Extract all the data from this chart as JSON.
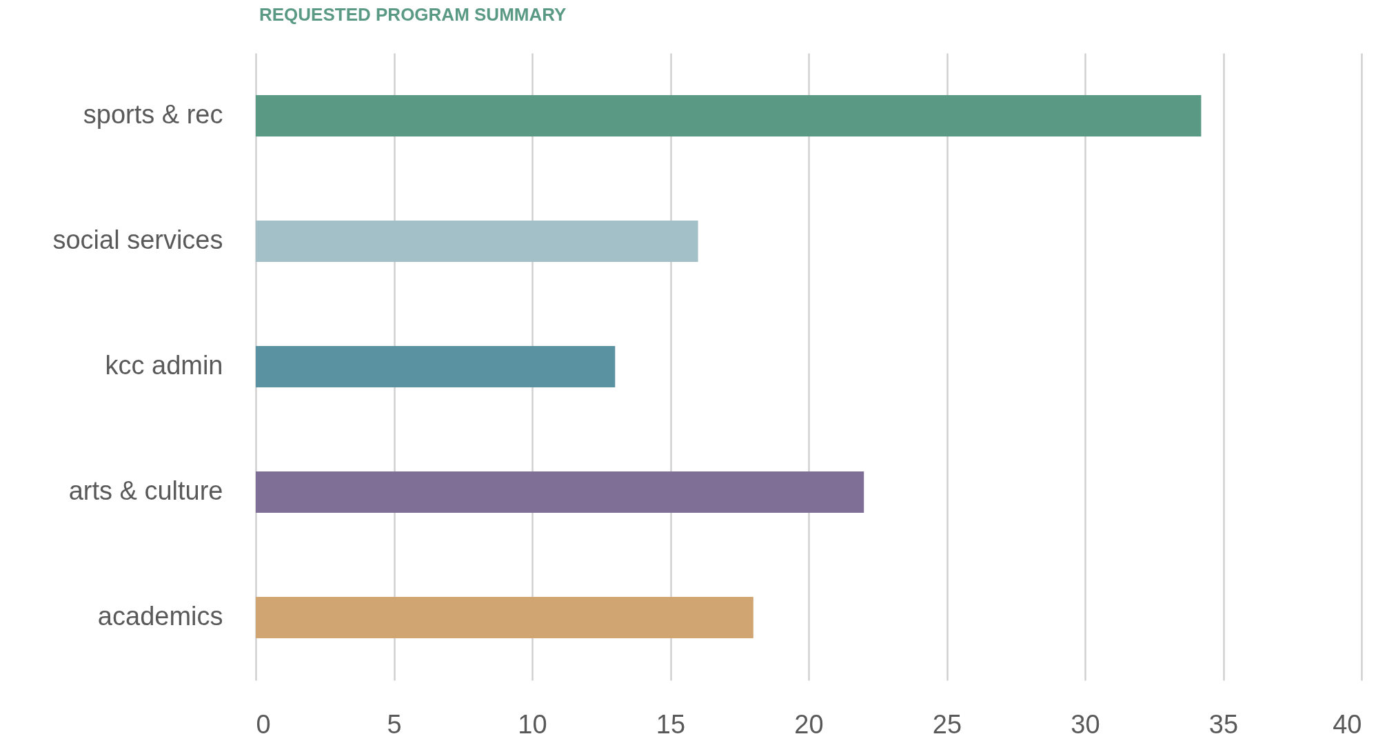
{
  "chart_data": {
    "type": "bar",
    "orientation": "horizontal",
    "title": "REQUESTED PROGRAM SUMMARY",
    "categories": [
      "sports & rec",
      "social services",
      "kcc admin",
      "arts & culture",
      "academics"
    ],
    "values": [
      34.2,
      16,
      13,
      22,
      18
    ],
    "colors": [
      "#5a9a85",
      "#a3c0c9",
      "#5b92a2",
      "#7f6e96",
      "#d1a572"
    ],
    "xlim": [
      0,
      40
    ],
    "xticks": [
      0,
      5,
      10,
      15,
      20,
      25,
      30,
      35,
      40
    ],
    "grid": "x"
  }
}
